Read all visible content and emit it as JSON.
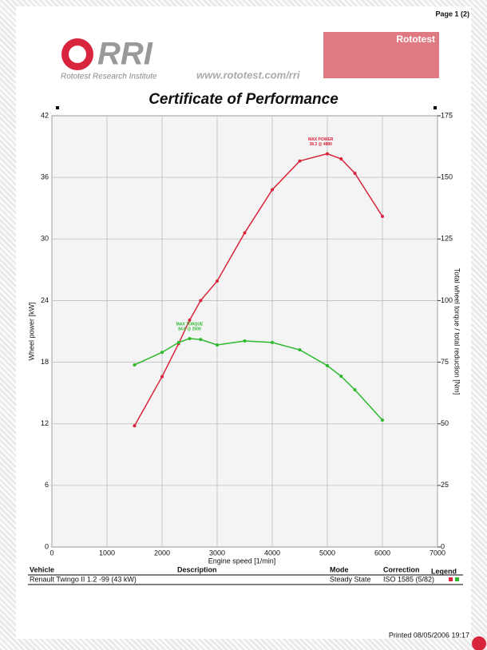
{
  "header": {
    "page": "Page 1 (2)",
    "logo": "RRI",
    "institute": "Rototest Research Institute",
    "url": "www.rototest.com/rri",
    "banner": "Rototest"
  },
  "title": "Certificate of Performance",
  "chart_data": {
    "type": "line",
    "xlabel": "Engine speed [1/min]",
    "ylabel": "Wheel power [kW]",
    "y2label": "Total wheel torque / total reduction [Nm]",
    "xlim": [
      0,
      7000
    ],
    "xticks": [
      0,
      1000,
      2000,
      3000,
      4000,
      5000,
      6000,
      7000
    ],
    "ylim": [
      0,
      42
    ],
    "yticks": [
      0,
      6,
      12,
      18,
      24,
      30,
      36,
      42
    ],
    "y2lim": [
      0,
      175
    ],
    "y2ticks": [
      0,
      25,
      50,
      75,
      100,
      125,
      150,
      175
    ],
    "grid": true,
    "series": [
      {
        "color": "#d8243c",
        "x": [
          1500,
          2000,
          2300,
          2500,
          2700,
          3000,
          3500,
          4000,
          4500,
          5000,
          5250,
          5500,
          6000
        ],
        "values": [
          11.8,
          16.6,
          19.8,
          22.1,
          24,
          25.9,
          30.6,
          34.8,
          37.6,
          38.3,
          37.8,
          36.4,
          32.2
        ]
      },
      {
        "color": "#2eb82e",
        "axis": "y2",
        "x": [
          1500,
          2000,
          2300,
          2500,
          2700,
          3000,
          3500,
          4000,
          4500,
          5000,
          5250,
          5500,
          6000
        ],
        "values": [
          73.9,
          79,
          83,
          84.6,
          84.2,
          82,
          83.6,
          83,
          80,
          73.6,
          69.3,
          63.8,
          51.5
        ]
      }
    ],
    "annotations": [
      {
        "lines": [
          "MAX POWER",
          "38.3 @ 4880"
        ],
        "x": 4880,
        "y": 38.3,
        "series": 0
      },
      {
        "lines": [
          "MAX TORQUE",
          "84.6 @ 2500"
        ],
        "x": 2500,
        "y": 84.6,
        "series": 1
      }
    ]
  },
  "table": {
    "columns": [
      "Vehicle",
      "Description",
      "Mode",
      "Correction",
      "Legend"
    ],
    "row": [
      "Renault Twingo II 1.2 -99 (43 kW)",
      "Steady State",
      "ISO 1585 (5/82)"
    ]
  },
  "footer": "Printed 08/05/2006 19:17"
}
